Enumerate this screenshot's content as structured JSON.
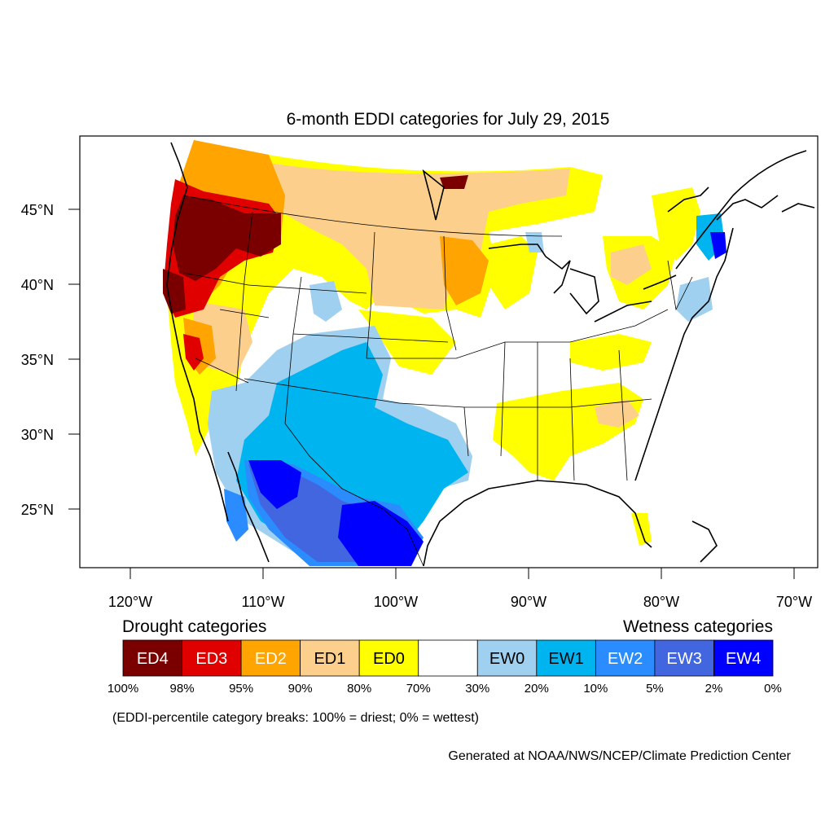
{
  "title": "6-month EDDI categories for July 29, 2015",
  "lat_labels": [
    "45°N",
    "40°N",
    "35°N",
    "30°N",
    "25°N"
  ],
  "lon_labels": [
    "120°W",
    "110°W",
    "100°W",
    "90°W",
    "80°W",
    "70°W"
  ],
  "legend": {
    "drought_title": "Drought categories",
    "wetness_title": "Wetness categories",
    "categories": [
      {
        "label": "ED4",
        "color": "#7a0000",
        "text_color": "#ffffff"
      },
      {
        "label": "ED3",
        "color": "#e00000",
        "text_color": "#ffffff"
      },
      {
        "label": "ED2",
        "color": "#ffa400",
        "text_color": "#ffffff"
      },
      {
        "label": "ED1",
        "color": "#fcd08c",
        "text_color": "#000000"
      },
      {
        "label": "ED0",
        "color": "#ffff00",
        "text_color": "#000000"
      },
      {
        "label": "",
        "color": "#ffffff",
        "text_color": "#000000"
      },
      {
        "label": "EW0",
        "color": "#9fd0f0",
        "text_color": "#000000"
      },
      {
        "label": "EW1",
        "color": "#00b4f0",
        "text_color": "#000000"
      },
      {
        "label": "EW2",
        "color": "#2a8cff",
        "text_color": "#ffffff"
      },
      {
        "label": "EW3",
        "color": "#4166e0",
        "text_color": "#ffffff"
      },
      {
        "label": "EW4",
        "color": "#0000ff",
        "text_color": "#ffffff"
      }
    ],
    "breaks": [
      "100%",
      "98%",
      "95%",
      "90%",
      "80%",
      "70%",
      "30%",
      "20%",
      "10%",
      "5%",
      "2%",
      "0%"
    ],
    "note": "(EDDI-percentile category breaks: 100% = driest; 0% = wettest)"
  },
  "credit": "Generated at NOAA/NWS/NCEP/Climate Prediction Center"
}
